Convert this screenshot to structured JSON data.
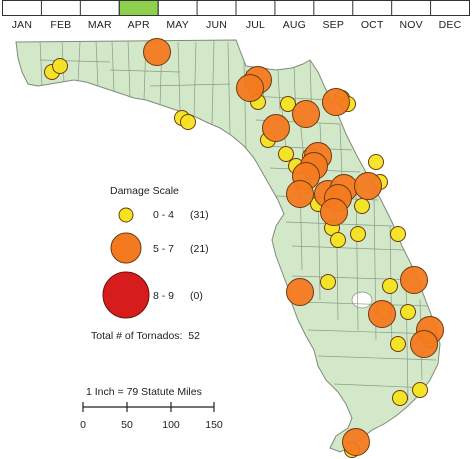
{
  "timeline": {
    "months": [
      "JAN",
      "FEB",
      "MAR",
      "APR",
      "MAY",
      "JUN",
      "JUL",
      "AUG",
      "SEP",
      "OCT",
      "NOV",
      "DEC"
    ],
    "highlighted_month": "APR",
    "highlight_color": "#8fd14f"
  },
  "legend": {
    "title": "Damage Scale",
    "items": [
      {
        "label": "0 - 4",
        "count": "(31)",
        "color": "#f5e41f",
        "size": "small"
      },
      {
        "label": "5 - 7",
        "count": "(21)",
        "color": "#f47a20",
        "size": "medium"
      },
      {
        "label": "8 - 9",
        "count": "(0)",
        "color": "#d71c1c",
        "size": "large"
      }
    ],
    "total_label": "Total # of Tornados:",
    "total_value": "52"
  },
  "scale_bar": {
    "title": "1 Inch = 79 Statute Miles",
    "ticks": [
      "0",
      "50",
      "100",
      "150"
    ]
  },
  "colors": {
    "land": "#d3e8c9",
    "county_lines": "#8a9a86",
    "water": "#ffffff",
    "small": "#f5e41f",
    "medium": "#f47a20"
  }
}
